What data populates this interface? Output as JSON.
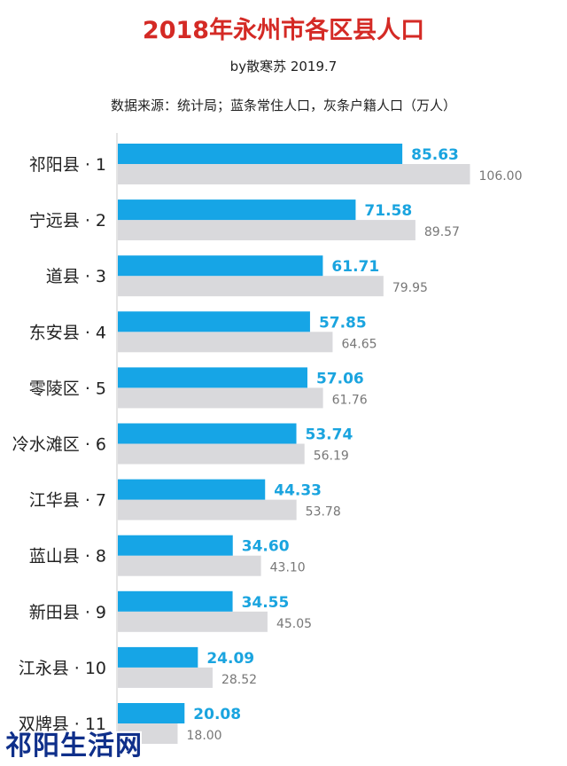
{
  "header": {
    "title": "2018年永州市各区县人口",
    "byline": "by散寒苏 2019.7",
    "source_note": "数据来源：统计局；蓝条常住人口，灰条户籍人口（万人）"
  },
  "watermark": "祁阳生活网",
  "colors": {
    "resident_bar": "#16a5e6",
    "registered_bar": "#d9d9dc",
    "title": "#d42a25"
  },
  "chart_data": {
    "type": "bar",
    "orientation": "horizontal",
    "title": "2018年永州市各区县人口",
    "categories": [
      "祁阳县 · 1",
      "宁远县 · 2",
      "道县 · 3",
      "东安县 · 4",
      "零陵区 · 5",
      "冷水滩区 · 6",
      "江华县 · 7",
      "蓝山县 · 8",
      "新田县 · 9",
      "江永县 · 10",
      "双牌县 · 11"
    ],
    "series": [
      {
        "values": [
          85.63,
          71.58,
          61.71,
          57.85,
          57.06,
          53.74,
          44.33,
          34.6,
          34.55,
          24.09,
          20.08
        ],
        "labels": [
          "85.63",
          "71.58",
          "61.71",
          "57.85",
          "57.06",
          "53.74",
          "44.33",
          "34.60",
          "34.55",
          "24.09",
          "20.08"
        ]
      },
      {
        "values": [
          106.0,
          89.57,
          79.95,
          64.65,
          61.76,
          56.19,
          53.78,
          43.1,
          45.05,
          28.52,
          18.0
        ],
        "labels": [
          "106.00",
          "89.57",
          "79.95",
          "64.65",
          "61.76",
          "56.19",
          "53.78",
          "43.10",
          "45.05",
          "28.52",
          "18.00"
        ]
      }
    ],
    "grid": false,
    "legend": "none"
  }
}
